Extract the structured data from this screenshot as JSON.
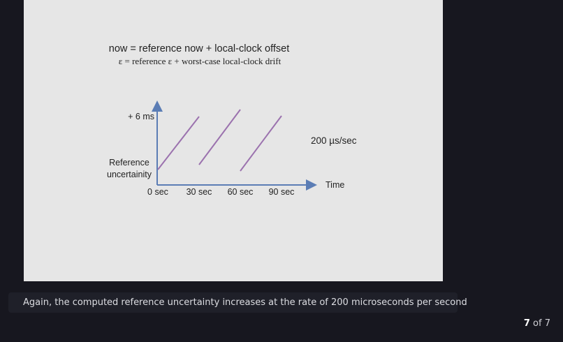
{
  "slide": {
    "formula_line1": "now = reference now + local-clock offset",
    "formula_line2": "ε  = reference ε + worst-case local-clock drift",
    "diagram": {
      "y_top_label": "+ 6 ms",
      "y_label_line1": "Reference",
      "y_label_line2": "uncertainity",
      "x_ticks": [
        "0 sec",
        "30 sec",
        "60 sec",
        "90 sec"
      ],
      "x_axis_label": "Time",
      "rate_label": "200 µs/sec",
      "axis_color": "#5b7db5",
      "line_color": "#9b72ae"
    }
  },
  "caption": "Again, the computed reference uncertainty increases at the rate of 200 microseconds per second",
  "pagination": {
    "current": "7",
    "separator": "of",
    "total": "7"
  }
}
